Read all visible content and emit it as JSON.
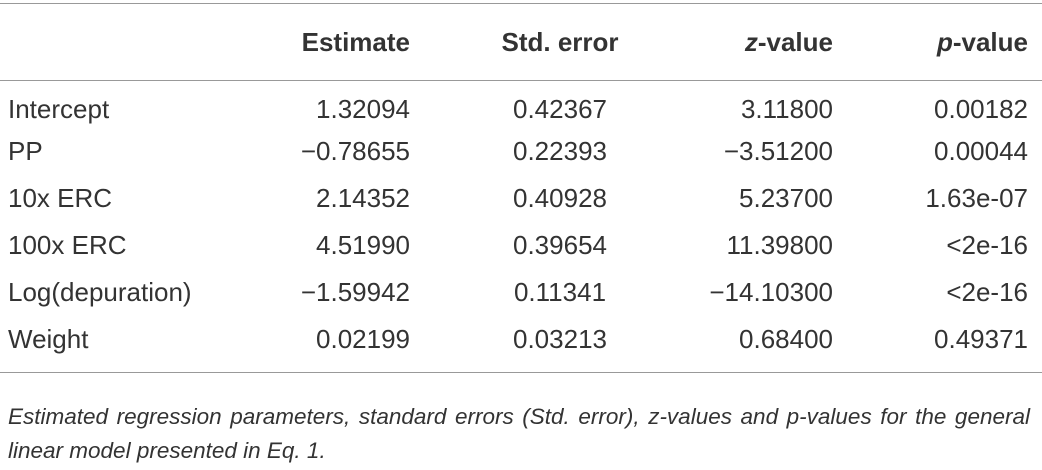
{
  "table": {
    "header": [
      "Estimate",
      "Std. error",
      "z-value",
      "p-value"
    ],
    "rows": [
      [
        "Intercept",
        "1.32094",
        "0.42367",
        "3.11800",
        "0.00182"
      ],
      [
        "PP",
        "−0.78655",
        "0.22393",
        "−3.51200",
        "0.00044"
      ],
      [
        "10x ERC",
        "2.14352",
        "0.40928",
        "5.23700",
        "1.63e-07"
      ],
      [
        "100x ERC",
        "4.51990",
        "0.39654",
        "11.39800",
        "<2e-16"
      ],
      [
        "Log(depuration)",
        "−1.59942",
        "0.11341",
        "−14.10300",
        "<2e-16"
      ],
      [
        "Weight",
        "0.02199",
        "0.03213",
        "0.68400",
        "0.49371"
      ]
    ]
  },
  "caption": "Estimated regression parameters, standard errors (Std. error), z-values and p-values for the general linear model presented in Eq. 1."
}
